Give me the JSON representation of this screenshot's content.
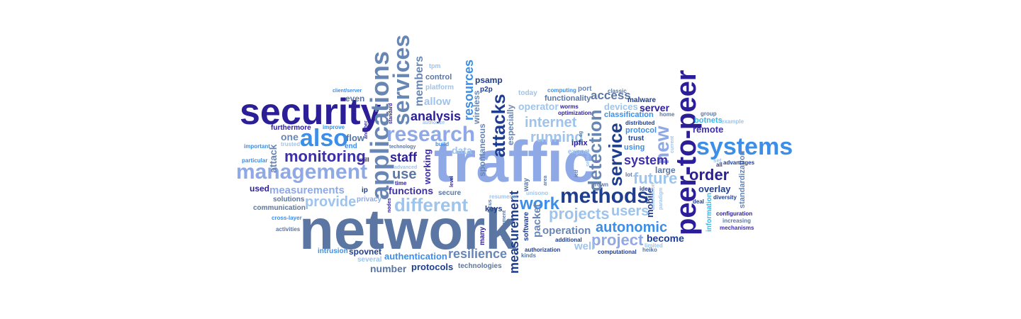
{
  "palette": {
    "navy": "#2b1e96",
    "indigo": "#3d2fa8",
    "royal": "#1f3d8f",
    "slate": "#5b76a3",
    "steel": "#6886b4",
    "periwinkle": "#8fa8e6",
    "sky": "#3c8ee8",
    "lightblue": "#9ec4ec",
    "teal": "#4f7f95",
    "cyan": "#3db6e6",
    "paleblue": "#b3cdea"
  },
  "words": [
    {
      "text": "network",
      "color": "#5b76a3"
    },
    {
      "text": "traffic",
      "color": "#8fa8e6"
    },
    {
      "text": "security",
      "color": "#2b1e96"
    },
    {
      "text": "peer-to-peer",
      "color": "#2b1e96"
    },
    {
      "text": "applications",
      "color": "#6886b4"
    },
    {
      "text": "systems",
      "color": "#3c8ee8"
    },
    {
      "text": "services",
      "color": "#6886b4"
    },
    {
      "text": "management",
      "color": "#8fa8e6"
    },
    {
      "text": "research",
      "color": "#8fa8e6"
    },
    {
      "text": "methods",
      "color": "#1f3d8f"
    },
    {
      "text": "attacks",
      "color": "#1f3d8f"
    },
    {
      "text": "also",
      "color": "#3c8ee8"
    },
    {
      "text": "service",
      "color": "#1f3d8f"
    },
    {
      "text": "detection",
      "color": "#6886b4"
    },
    {
      "text": "different",
      "color": "#9ec4ec"
    },
    {
      "text": "monitoring",
      "color": "#3d2fa8"
    },
    {
      "text": "new",
      "color": "#8fa8e6"
    },
    {
      "text": "measurement",
      "color": "#1f3d8f"
    },
    {
      "text": "projects",
      "color": "#9ec4ec"
    },
    {
      "text": "work",
      "color": "#3c8ee8"
    },
    {
      "text": "autonomic",
      "color": "#3c8ee8"
    },
    {
      "text": "project",
      "color": "#8fa8e6"
    },
    {
      "text": "resources",
      "color": "#3c8ee8"
    },
    {
      "text": "order",
      "color": "#2b1e96"
    },
    {
      "text": "future",
      "color": "#9ec4ec"
    },
    {
      "text": "users",
      "color": "#9ec4ec"
    },
    {
      "text": "running",
      "color": "#9ec4ec"
    },
    {
      "text": "internet",
      "color": "#9ec4ec"
    },
    {
      "text": "analysis",
      "color": "#2b1e96"
    },
    {
      "text": "provide",
      "color": "#9ec4ec"
    },
    {
      "text": "measurements",
      "color": "#8fa8e6"
    },
    {
      "text": "resilience",
      "color": "#6886b4"
    },
    {
      "text": "use",
      "color": "#5b76a3"
    },
    {
      "text": "members",
      "color": "#6886b4"
    },
    {
      "text": "system",
      "color": "#3d2fa8"
    },
    {
      "text": "staff",
      "color": "#2b1e96"
    },
    {
      "text": "functions",
      "color": "#3d2fa8"
    },
    {
      "text": "working",
      "color": "#3d2fa8"
    },
    {
      "text": "allow",
      "color": "#9ec4ec"
    },
    {
      "text": "operation",
      "color": "#6886b4"
    },
    {
      "text": "packet",
      "color": "#6886b4"
    },
    {
      "text": "spontaneous",
      "color": "#6886b4"
    },
    {
      "text": "well",
      "color": "#9ec4ec"
    },
    {
      "text": "become",
      "color": "#1f3d8f"
    },
    {
      "text": "access",
      "color": "#5b76a3"
    },
    {
      "text": "server",
      "color": "#2b1e96"
    },
    {
      "text": "authentication",
      "color": "#3c8ee8"
    },
    {
      "text": "protocols",
      "color": "#1f3d8f"
    },
    {
      "text": "number",
      "color": "#5b76a3"
    },
    {
      "text": "data",
      "color": "#9ec4ec"
    },
    {
      "text": "devices",
      "color": "#9ec4ec"
    },
    {
      "text": "remote",
      "color": "#3d2fa8"
    },
    {
      "text": "overlay",
      "color": "#1f3d8f"
    },
    {
      "text": "operator",
      "color": "#9ec4ec"
    },
    {
      "text": "mobile",
      "color": "#1f3d8f"
    },
    {
      "text": "large",
      "color": "#5b76a3"
    },
    {
      "text": "attack",
      "color": "#6886b4"
    },
    {
      "text": "one",
      "color": "#6886b4"
    },
    {
      "text": "flow",
      "color": "#5b76a3"
    },
    {
      "text": "even",
      "color": "#5b76a3"
    },
    {
      "text": "end",
      "color": "#3c8ee8"
    },
    {
      "text": "used",
      "color": "#2b1e96"
    },
    {
      "text": "spovnet",
      "color": "#1f3d8f"
    },
    {
      "text": "control",
      "color": "#5b76a3"
    },
    {
      "text": "platform",
      "color": "#9ec4ec"
    },
    {
      "text": "keys",
      "color": "#1f3d8f"
    },
    {
      "text": "psamp",
      "color": "#1f3d8f"
    },
    {
      "text": "p2p",
      "color": "#1f3d8f"
    },
    {
      "text": "wireless",
      "color": "#6886b4"
    },
    {
      "text": "especially",
      "color": "#6886b4"
    },
    {
      "text": "today",
      "color": "#9ec4ec"
    },
    {
      "text": "functionality",
      "color": "#5b76a3"
    },
    {
      "text": "port",
      "color": "#6886b4"
    },
    {
      "text": "classification",
      "color": "#3c8ee8"
    },
    {
      "text": "protocol",
      "color": "#3c8ee8"
    },
    {
      "text": "trust",
      "color": "#1f3d8f"
    },
    {
      "text": "using",
      "color": "#3c8ee8"
    },
    {
      "text": "malware",
      "color": "#1f3d8f"
    },
    {
      "text": "ipfix",
      "color": "#2b1e96"
    },
    {
      "text": "export",
      "color": "#9ec4ec"
    },
    {
      "text": "information",
      "color": "#3db6e6"
    },
    {
      "text": "standardization",
      "color": "#6886b4"
    },
    {
      "text": "botnets",
      "color": "#3db6e6"
    },
    {
      "text": "way",
      "color": "#5b76a3"
    },
    {
      "text": "software",
      "color": "#1f3d8f"
    },
    {
      "text": "secure",
      "color": "#5b76a3"
    },
    {
      "text": "privacy",
      "color": "#8fa8e6"
    },
    {
      "text": "ip",
      "color": "#1f3d8f"
    },
    {
      "text": "solutions",
      "color": "#5b76a3"
    },
    {
      "text": "communication",
      "color": "#5b76a3"
    },
    {
      "text": "intrusion",
      "color": "#3c8ee8"
    },
    {
      "text": "several",
      "color": "#9ec4ec"
    },
    {
      "text": "technologies",
      "color": "#5b76a3"
    },
    {
      "text": "furthermore",
      "color": "#2b1e96"
    },
    {
      "text": "tpm",
      "color": "#9ec4ec"
    },
    {
      "text": "resumenet",
      "color": "#9ec4ec"
    },
    {
      "text": "computing",
      "color": "#3c8ee8"
    },
    {
      "text": "worms",
      "color": "#2b1e96"
    },
    {
      "text": "optimization",
      "color": "#2b1e96"
    },
    {
      "text": "classic",
      "color": "#5b76a3"
    },
    {
      "text": "home",
      "color": "#5b76a3"
    },
    {
      "text": "distributed",
      "color": "#1f3d8f"
    },
    {
      "text": "example",
      "color": "#9ec4ec"
    },
    {
      "text": "group",
      "color": "#5b76a3"
    },
    {
      "text": "set",
      "color": "#9ec4ec"
    },
    {
      "text": "advantages",
      "color": "#1f3d8f"
    },
    {
      "text": "all",
      "color": "#3d2fa8"
    },
    {
      "text": "diversity",
      "color": "#1f3d8f"
    },
    {
      "text": "configuration",
      "color": "#2b1e96"
    },
    {
      "text": "increasing",
      "color": "#5b76a3"
    },
    {
      "text": "mechanisms",
      "color": "#3d2fa8"
    },
    {
      "text": "deal",
      "color": "#1f3d8f"
    },
    {
      "text": "idea",
      "color": "#1f3d8f"
    },
    {
      "text": "paradigm",
      "color": "#9ec4ec"
    },
    {
      "text": "automation",
      "color": "#9ec4ec"
    },
    {
      "text": "current",
      "color": "#9ec4ec"
    },
    {
      "text": "limited",
      "color": "#9ec4ec"
    },
    {
      "text": "heiko",
      "color": "#5b76a3"
    },
    {
      "text": "lot",
      "color": "#5b76a3"
    },
    {
      "text": "grown",
      "color": "#5b76a3"
    },
    {
      "text": "computational",
      "color": "#1f3d8f"
    },
    {
      "text": "additional",
      "color": "#1f3d8f"
    },
    {
      "text": "authorization",
      "color": "#1f3d8f"
    },
    {
      "text": "kinds",
      "color": "#5b76a3"
    },
    {
      "text": "unisono",
      "color": "#9ec4ec"
    },
    {
      "text": "area",
      "color": "#5b76a3"
    },
    {
      "text": "ietf",
      "color": "#5b76a3"
    },
    {
      "text": "eg",
      "color": "#5b76a3"
    },
    {
      "text": "sensor",
      "color": "#9ec4ec"
    },
    {
      "text": "focus",
      "color": "#5b76a3"
    },
    {
      "text": "development",
      "color": "#5b76a3"
    },
    {
      "text": "many",
      "color": "#2b1e96"
    },
    {
      "text": "build",
      "color": "#3c8ee8"
    },
    {
      "text": "authorize",
      "color": "#9ec4ec"
    },
    {
      "text": "technology",
      "color": "#5b76a3"
    },
    {
      "text": "advanced",
      "color": "#9ec4ec"
    },
    {
      "text": "standard",
      "color": "#2b1e96"
    },
    {
      "text": "another",
      "color": "#3d2fa8"
    },
    {
      "text": "trusted",
      "color": "#9ec4ec"
    },
    {
      "text": "still",
      "color": "#2b1e96"
    },
    {
      "text": "time",
      "color": "#2b1e96"
    },
    {
      "text": "level",
      "color": "#2b1e96"
    },
    {
      "text": "nodes",
      "color": "#2b1e96"
    },
    {
      "text": "client/server",
      "color": "#3c8ee8"
    },
    {
      "text": "improve",
      "color": "#3c8ee8"
    },
    {
      "text": "important",
      "color": "#3c8ee8"
    },
    {
      "text": "particular",
      "color": "#3c8ee8"
    },
    {
      "text": "cross-layer",
      "color": "#3c8ee8"
    },
    {
      "text": "activities",
      "color": "#5b76a3"
    }
  ]
}
